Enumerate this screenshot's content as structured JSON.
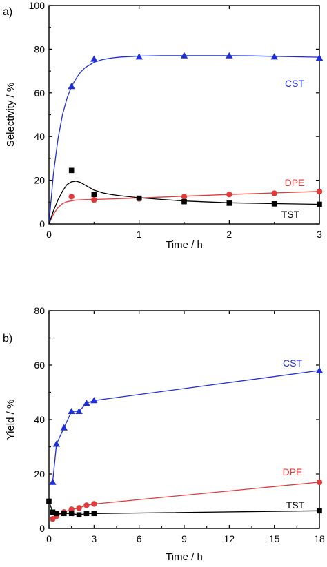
{
  "chart_data": [
    {
      "panel_label": "a)",
      "type": "scatter",
      "xlabel": "Time / h",
      "ylabel": "Selectivity / %",
      "xlim": [
        0,
        3
      ],
      "ylim": [
        0,
        100
      ],
      "xticks": [
        0,
        1,
        2,
        3
      ],
      "yticks": [
        0,
        20,
        40,
        60,
        80,
        100
      ],
      "grid": false,
      "series": [
        {
          "name": "CST",
          "color": "#1f2fd6",
          "marker": "triangle",
          "x": [
            0.25,
            0.5,
            1.0,
            1.5,
            2.0,
            2.5,
            3.0
          ],
          "y": [
            63.0,
            75.5,
            76.5,
            77.0,
            77.0,
            76.5,
            76.0
          ],
          "fit": {
            "x": [
              0,
              0.05,
              0.1,
              0.15,
              0.2,
              0.25,
              0.3,
              0.35,
              0.4,
              0.5,
              0.6,
              0.7,
              0.8,
              0.9,
              1.0,
              1.25,
              1.5,
              1.75,
              2.0,
              2.25,
              2.5,
              2.75,
              3.0
            ],
            "y": [
              0,
              23,
              39,
              50,
              57.5,
              63,
              66.5,
              69.5,
              71.5,
              74,
              75.3,
              76.0,
              76.4,
              76.6,
              76.8,
              77.0,
              77.0,
              77.0,
              77.0,
              76.9,
              76.7,
              76.5,
              76.3
            ]
          }
        },
        {
          "name": "DPE",
          "color": "#e03a3a",
          "marker": "circle",
          "x": [
            0.25,
            0.5,
            1.0,
            1.5,
            2.0,
            2.5,
            3.0
          ],
          "y": [
            12.5,
            11.0,
            11.5,
            12.5,
            13.5,
            14.0,
            14.8
          ],
          "fit": {
            "x": [
              0,
              0.05,
              0.1,
              0.15,
              0.2,
              0.3,
              0.4,
              0.5,
              0.75,
              1.0,
              1.5,
              2.0,
              2.5,
              3.0
            ],
            "y": [
              0,
              4.5,
              7.5,
              9.3,
              10.2,
              10.9,
              11.1,
              11.2,
              11.5,
              11.9,
              12.7,
              13.5,
              14.2,
              14.9
            ]
          }
        },
        {
          "name": "TST",
          "color": "#000000",
          "marker": "square",
          "x": [
            0.25,
            0.5,
            1.0,
            1.5,
            2.0,
            2.5,
            3.0
          ],
          "y": [
            24.5,
            13.5,
            11.8,
            10.2,
            9.5,
            9.2,
            9.0
          ],
          "fit": {
            "x": [
              0,
              0.05,
              0.1,
              0.15,
              0.2,
              0.25,
              0.3,
              0.35,
              0.4,
              0.5,
              0.6,
              0.7,
              0.8,
              1.0,
              1.25,
              1.5,
              2.0,
              2.5,
              3.0
            ],
            "y": [
              0,
              6,
              11,
              15,
              18,
              19.3,
              19.6,
              19.0,
              17.8,
              15.5,
              14.2,
              13.4,
              12.9,
              12.0,
              11.2,
              10.5,
              9.7,
              9.3,
              9.0
            ]
          }
        }
      ]
    },
    {
      "panel_label": "b)",
      "type": "line",
      "xlabel": "Time / h",
      "ylabel": "Yield / %",
      "xlim": [
        0,
        18
      ],
      "ylim": [
        0,
        80
      ],
      "xticks": [
        0,
        3,
        6,
        9,
        12,
        15,
        18
      ],
      "yticks": [
        0,
        20,
        40,
        60,
        80
      ],
      "grid": false,
      "series": [
        {
          "name": "CST",
          "color": "#1f2fd6",
          "marker": "triangle",
          "x": [
            0.25,
            0.5,
            1.0,
            1.5,
            2.0,
            2.5,
            3.0,
            18
          ],
          "y": [
            17,
            31,
            37,
            43,
            43,
            46,
            47,
            58
          ]
        },
        {
          "name": "DPE",
          "color": "#e03a3a",
          "marker": "circle",
          "x": [
            0.25,
            0.5,
            1.0,
            1.5,
            2.0,
            2.5,
            3.0,
            18
          ],
          "y": [
            3.5,
            4.5,
            6.0,
            7.0,
            7.5,
            8.5,
            9.0,
            17.0
          ]
        },
        {
          "name": "TST",
          "color": "#000000",
          "marker": "square",
          "x": [
            0.0,
            0.25,
            0.5,
            1.0,
            1.5,
            2.0,
            2.5,
            3.0,
            18
          ],
          "y": [
            10.0,
            6.0,
            5.5,
            5.5,
            5.5,
            5.0,
            5.5,
            5.5,
            6.5
          ]
        }
      ]
    }
  ]
}
